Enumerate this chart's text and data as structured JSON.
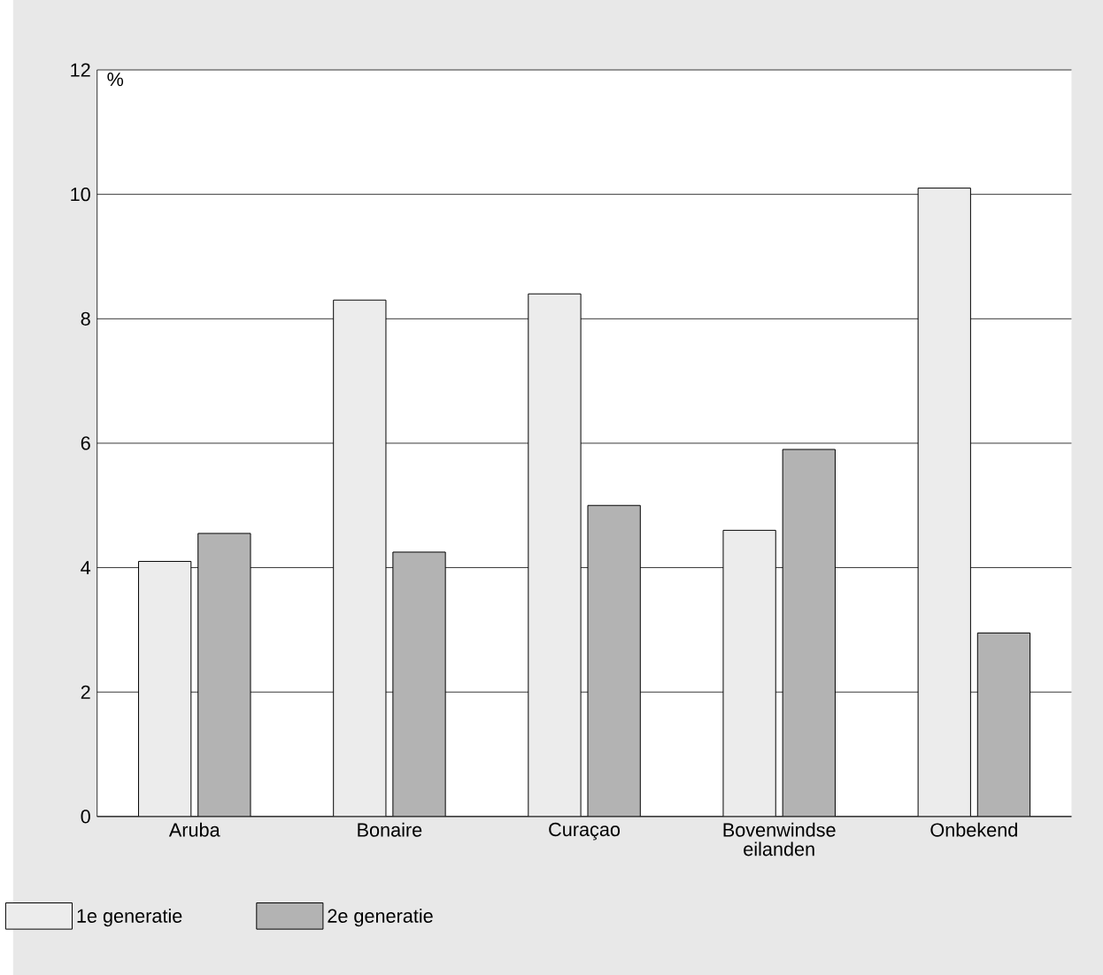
{
  "chart_data": {
    "type": "bar",
    "ylabel": "%",
    "categories": [
      "Aruba",
      "Bonaire",
      "Curaçao",
      "Bovenwindse eilanden",
      "Onbekend"
    ],
    "series": [
      {
        "name": "1e generatie",
        "color": "#ececec",
        "values": [
          4.1,
          8.3,
          8.4,
          4.6,
          10.1
        ]
      },
      {
        "name": "2e generatie",
        "color": "#b3b3b3",
        "values": [
          4.55,
          4.25,
          5.0,
          5.9,
          2.95
        ]
      }
    ],
    "ylim": [
      0,
      12
    ],
    "yticks": [
      0,
      2,
      4,
      6,
      8,
      10,
      12
    ],
    "grid": "y",
    "legend": "bottom"
  }
}
